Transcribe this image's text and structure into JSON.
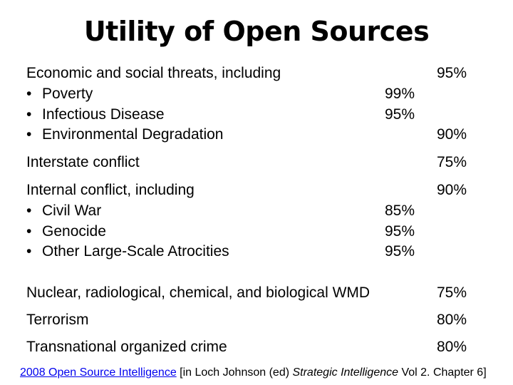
{
  "title": "Utility of Open Sources",
  "rows": [
    {
      "label": "Economic and social threats, including",
      "main": "95%"
    },
    {
      "label": "Poverty",
      "sub": "99%"
    },
    {
      "label": "Infectious Disease",
      "sub": "95%"
    },
    {
      "label": "Environmental Degradation",
      "main": "90%"
    },
    {
      "label": "Interstate conflict",
      "main": "75%"
    },
    {
      "label": "Internal conflict, including",
      "main": "90%"
    },
    {
      "label": "Civil War",
      "sub": "85%"
    },
    {
      "label": "Genocide",
      "sub": "95%"
    },
    {
      "label": "Other Large-Scale Atrocities",
      "sub": "95%"
    },
    {
      "label": "Nuclear, radiological, chemical, and biological WMD",
      "main": "75%"
    },
    {
      "label": "Terrorism",
      "main": "80%"
    },
    {
      "label": "Transnational organized crime",
      "main": "80%"
    }
  ],
  "bullet": "•",
  "citation": {
    "link": "2008 Open Source Intelligence",
    "prefix": " [in Loch Johnson (ed) ",
    "italic1": "Strategic Intelligence",
    "suffix": " Vol 2. Chapter 6]"
  }
}
